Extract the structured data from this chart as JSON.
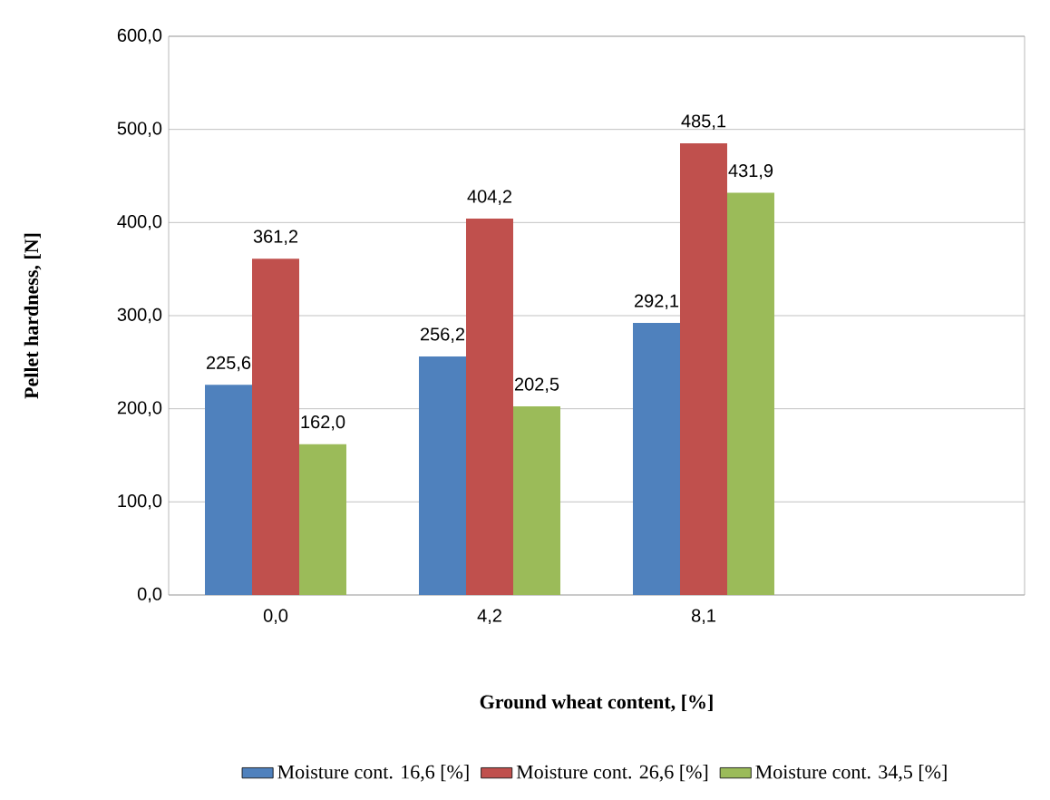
{
  "chart_data": {
    "type": "bar",
    "xlabel": "Ground wheat content, [%]",
    "ylabel": "Pellet hardness, [N]",
    "categories": [
      "0,0",
      "4,2",
      "8,1",
      null
    ],
    "series": [
      {
        "name": "Moisture cont. 16,6 [%]",
        "color": "#4f81bd",
        "values": [
          225.6,
          256.2,
          292.1,
          null
        ],
        "value_labels": [
          "225,6",
          "256,2",
          "292,1",
          null
        ]
      },
      {
        "name": "Moisture cont. 26,6 [%]",
        "color": "#c0504d",
        "values": [
          361.2,
          404.2,
          485.1,
          null
        ],
        "value_labels": [
          "361,2",
          "404,2",
          "485,1",
          null
        ]
      },
      {
        "name": "Moisture cont. 34,5 [%]",
        "color": "#9bbb59",
        "values": [
          162.0,
          202.5,
          431.9,
          null
        ],
        "value_labels": [
          "162,0",
          "202,5",
          "431,9",
          null
        ]
      }
    ],
    "ylim": [
      0,
      600
    ],
    "yticks": [
      {
        "value": 0,
        "label": "0,0"
      },
      {
        "value": 100,
        "label": "100,0"
      },
      {
        "value": 200,
        "label": "200,0"
      },
      {
        "value": 300,
        "label": "300,0"
      },
      {
        "value": 400,
        "label": "400,0"
      },
      {
        "value": 500,
        "label": "500,0"
      },
      {
        "value": 600,
        "label": "600,0"
      }
    ],
    "grid": "y",
    "legend": "bottom"
  }
}
